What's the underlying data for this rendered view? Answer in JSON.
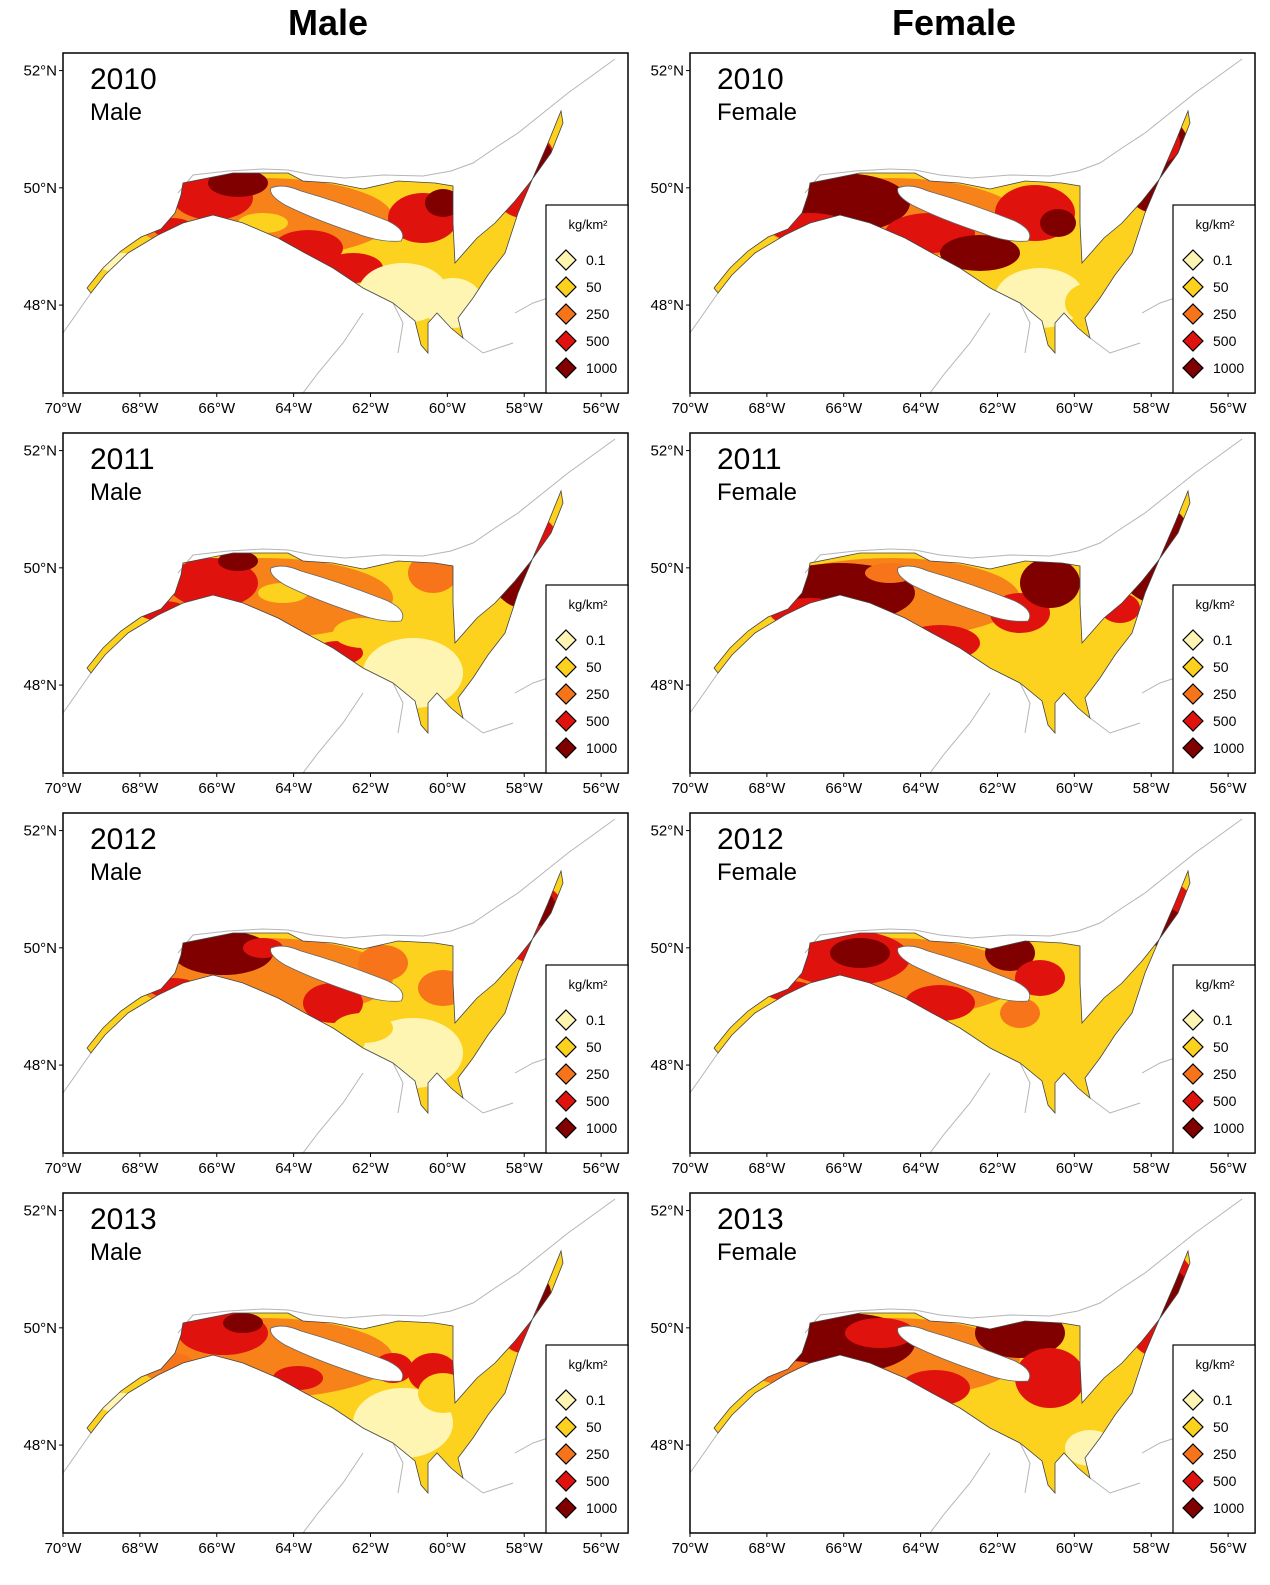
{
  "column_titles": [
    "Male",
    "Female"
  ],
  "panels": [
    {
      "year": "2010",
      "sex": "Male"
    },
    {
      "year": "2010",
      "sex": "Female"
    },
    {
      "year": "2011",
      "sex": "Male"
    },
    {
      "year": "2011",
      "sex": "Female"
    },
    {
      "year": "2012",
      "sex": "Male"
    },
    {
      "year": "2012",
      "sex": "Female"
    },
    {
      "year": "2013",
      "sex": "Male"
    },
    {
      "year": "2013",
      "sex": "Female"
    }
  ],
  "map": {
    "lat_ticks": [
      "52°N",
      "50°N",
      "48°N"
    ],
    "lon_ticks": [
      "70°W",
      "68°W",
      "66°W",
      "64°W",
      "62°W",
      "60°W",
      "58°W",
      "56°W"
    ],
    "lon_range": [
      -70,
      -55.3
    ],
    "lat_range": [
      46.5,
      52.3
    ]
  },
  "legend": {
    "title": "kg/km²",
    "items": [
      {
        "label": "0.1",
        "color": "#fff5b3"
      },
      {
        "label": "50",
        "color": "#fcd21e"
      },
      {
        "label": "250",
        "color": "#f7741a"
      },
      {
        "label": "500",
        "color": "#e0120e"
      },
      {
        "label": "1000",
        "color": "#800000"
      }
    ]
  },
  "colors": {
    "land_outline": "#b5b5b5",
    "frame": "#000000"
  }
}
